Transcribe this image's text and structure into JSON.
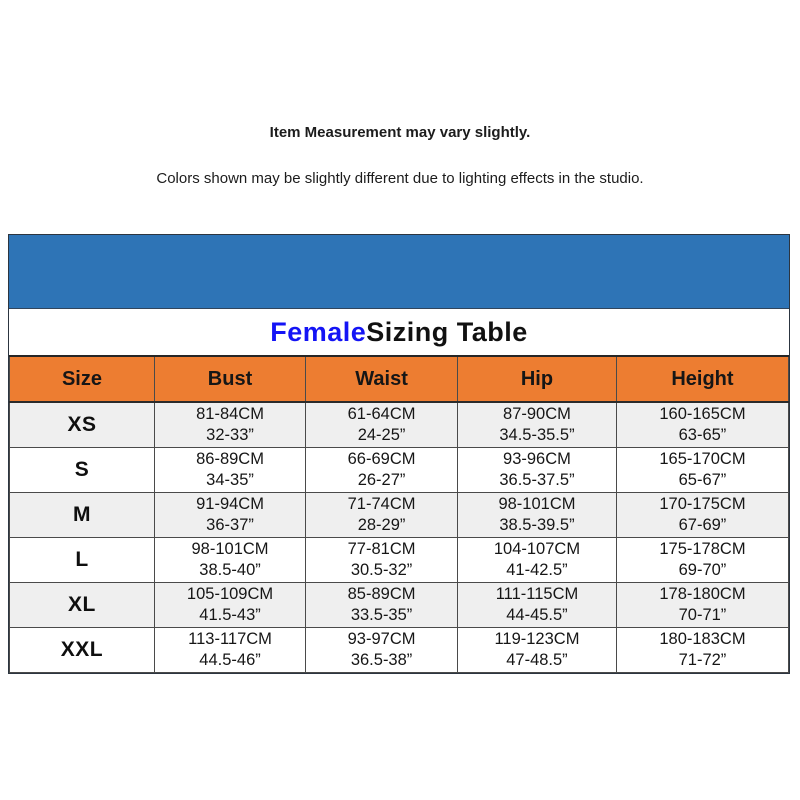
{
  "notices": {
    "measurement": "Item Measurement may vary slightly.",
    "colors": "Colors shown may be slightly different due to lighting effects in the studio."
  },
  "sizing_table": {
    "title_highlight": "Female",
    "title_rest": " Sizing Table",
    "columns": [
      "Size",
      "Bust",
      "Waist",
      "Hip",
      "Height"
    ],
    "rows": [
      {
        "size": "XS",
        "bust": [
          "81-84CM",
          "32-33”"
        ],
        "waist": [
          "61-64CM",
          "24-25”"
        ],
        "hip": [
          "87-90CM",
          "34.5-35.5”"
        ],
        "height": [
          "160-165CM",
          "63-65”"
        ]
      },
      {
        "size": "S",
        "bust": [
          "86-89CM",
          "34-35”"
        ],
        "waist": [
          "66-69CM",
          "26-27”"
        ],
        "hip": [
          "93-96CM",
          "36.5-37.5”"
        ],
        "height": [
          "165-170CM",
          "65-67”"
        ]
      },
      {
        "size": "M",
        "bust": [
          "91-94CM",
          "36-37”"
        ],
        "waist": [
          "71-74CM",
          "28-29”"
        ],
        "hip": [
          "98-101CM",
          "38.5-39.5”"
        ],
        "height": [
          "170-175CM",
          "67-69”"
        ]
      },
      {
        "size": "L",
        "bust": [
          "98-101CM",
          "38.5-40”"
        ],
        "waist": [
          "77-81CM",
          "30.5-32”"
        ],
        "hip": [
          "104-107CM",
          "41-42.5”"
        ],
        "height": [
          "175-178CM",
          "69-70”"
        ]
      },
      {
        "size": "XL",
        "bust": [
          "105-109CM",
          "41.5-43”"
        ],
        "waist": [
          "85-89CM",
          "33.5-35”"
        ],
        "hip": [
          "111-115CM",
          "44-45.5”"
        ],
        "height": [
          "178-180CM",
          "70-71”"
        ]
      },
      {
        "size": "XXL",
        "bust": [
          "113-117CM",
          "44.5-46”"
        ],
        "waist": [
          "93-97CM",
          "36.5-38”"
        ],
        "hip": [
          "119-123CM",
          "47-48.5”"
        ],
        "height": [
          "180-183CM",
          "71-72”"
        ]
      }
    ]
  },
  "colors": {
    "banner_blue": "#2E74B6",
    "header_orange": "#ED7D31",
    "title_blue": "#1414F5",
    "alt_row_gray": "#EFEFEF",
    "text_black": "#1A1A1A"
  }
}
